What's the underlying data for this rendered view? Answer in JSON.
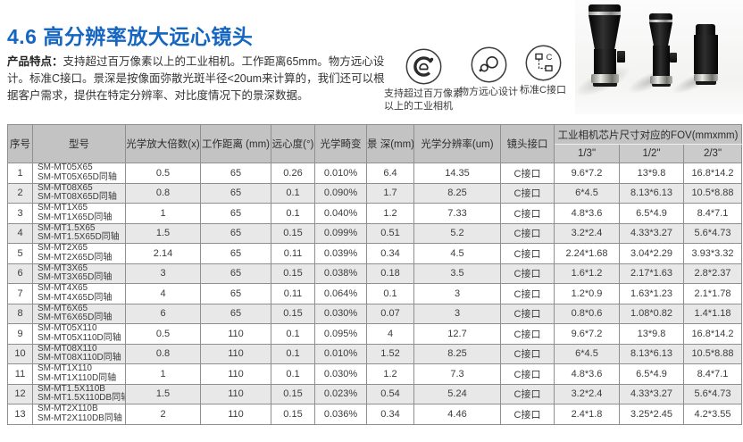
{
  "colors": {
    "accent_blue": "#1566C0",
    "table_header_bg": "#c3c3c3",
    "table_subheader_bg": "#cbcbcb",
    "row_alt_bg": "#e8e8e8",
    "border": "#8f8f8f"
  },
  "page": {
    "title": "4.6 高分辨率放大远心镜头",
    "intro_label": "产品特点：",
    "intro_text": "支持超过百万像素以上的工业相机。工作距离65mm。物方远心设计。标准C接口。景深是按像面弥散光斑半径<20um来计算的，我们还可以根据客户需求，提供在特定分辨率、对比度情况下的景深数据。"
  },
  "features": [
    {
      "icon": "camera-sensor-icon",
      "label": "支持超过百万像素\n以上的工业相机"
    },
    {
      "icon": "telecentric-design-icon",
      "label": "物方远心设计"
    },
    {
      "icon": "c-mount-icon",
      "label": "标准C接口"
    }
  ],
  "photo": {
    "alt": "三款远心镜头产品图"
  },
  "table": {
    "headers": {
      "index": "序号",
      "model": "型号",
      "magnification": "光学放大倍数(x)",
      "working_distance": "工作距离 (mm)",
      "telecentricity": "远心度(°)",
      "distortion": "光学畸变",
      "dof": "景 深(mm)",
      "resolution": "光学分辨率(um)",
      "mount": "镜头接口",
      "fov_group": "工业相机芯片尺寸对应的FOV(mmxmm)",
      "fov_13": "1/3\"",
      "fov_12": "1/2\"",
      "fov_23": "2/3\""
    },
    "rows": [
      {
        "no": "1",
        "models": [
          "SM-MT05X65",
          "SM-MT05X65D同轴"
        ],
        "cells": [
          "0.5",
          "65",
          "0.26",
          "0.010%",
          "6.4",
          "14.35",
          "C接口",
          "9.6*7.2",
          "13*9.8",
          "16.8*14.2"
        ]
      },
      {
        "no": "2",
        "models": [
          "SM-MT08X65",
          "SM-MT08X65D同轴"
        ],
        "cells": [
          "0.8",
          "65",
          "0.1",
          "0.090%",
          "1.7",
          "8.25",
          "C接口",
          "6*4.5",
          "8.13*6.13",
          "10.5*8.88"
        ]
      },
      {
        "no": "3",
        "models": [
          "SM-MT1X65",
          "SM-MT1X65D同轴"
        ],
        "cells": [
          "1",
          "65",
          "0.1",
          "0.040%",
          "1.2",
          "7.33",
          "C接口",
          "4.8*3.6",
          "6.5*4.9",
          "8.4*7.1"
        ]
      },
      {
        "no": "4",
        "models": [
          "SM-MT1.5X65",
          "SM-MT1.5X65D同轴"
        ],
        "cells": [
          "1.5",
          "65",
          "0.15",
          "0.099%",
          "0.51",
          "5.2",
          "C接口",
          "3.2*2.4",
          "4.33*3.27",
          "5.6*4.73"
        ]
      },
      {
        "no": "5",
        "models": [
          "SM-MT2X65",
          "SM-MT2X65D同轴"
        ],
        "cells": [
          "2.14",
          "65",
          "0.11",
          "0.039%",
          "0.34",
          "4.5",
          "C接口",
          "2.24*1.68",
          "3.04*2.29",
          "3.93*3.32"
        ]
      },
      {
        "no": "6",
        "models": [
          "SM-MT3X65",
          "SM-MT3X65D同轴"
        ],
        "cells": [
          "3",
          "65",
          "0.15",
          "0.038%",
          "0.18",
          "3.5",
          "C接口",
          "1.6*1.2",
          "2.17*1.63",
          "2.8*2.37"
        ]
      },
      {
        "no": "7",
        "models": [
          "SM-MT4X65",
          "SM-MT4X65D同轴"
        ],
        "cells": [
          "4",
          "65",
          "0.11",
          "0.064%",
          "0.1",
          "3",
          "C接口",
          "1.2*0.9",
          "1.63*1.23",
          "2.1*1.78"
        ]
      },
      {
        "no": "8",
        "models": [
          "SM-MT6X65",
          "SM-MT6X65D同轴"
        ],
        "cells": [
          "6",
          "65",
          "0.15",
          "0.030%",
          "0.07",
          "3",
          "C接口",
          "0.8*0.6",
          "1.08*0.82",
          "1.4*1.18"
        ]
      },
      {
        "no": "9",
        "models": [
          "SM-MT05X110",
          "SM-MT05X110D同轴"
        ],
        "cells": [
          "0.5",
          "110",
          "0.1",
          "0.095%",
          "4",
          "12.7",
          "C接口",
          "9.6*7.2",
          "13*9.8",
          "16.8*14.2"
        ]
      },
      {
        "no": "10",
        "models": [
          "SM-MT08X110",
          "SM-MT08X110D同轴"
        ],
        "cells": [
          "0.8",
          "110",
          "0.1",
          "0.010%",
          "1.52",
          "8.25",
          "C接口",
          "6*4.5",
          "8.13*6.13",
          "10.5*8.88"
        ]
      },
      {
        "no": "11",
        "models": [
          "SM-MT1X110",
          "SM-MT1X110D同轴"
        ],
        "cells": [
          "1",
          "110",
          "0.1",
          "0.030%",
          "1.2",
          "7.3",
          "C接口",
          "4.8*3.6",
          "6.5*4.9",
          "8.4*7.1"
        ]
      },
      {
        "no": "12",
        "models": [
          "SM-MT1.5X110B",
          "SM-MT1.5X110DB同轴"
        ],
        "cells": [
          "1.5",
          "110",
          "0.15",
          "0.023%",
          "0.54",
          "5.24",
          "C接口",
          "3.2*2.4",
          "4.33*3.27",
          "5.6*4.73"
        ]
      },
      {
        "no": "13",
        "models": [
          "SM-MT2X110B",
          "SM-MT2X110DB同轴"
        ],
        "cells": [
          "2",
          "110",
          "0.15",
          "0.036%",
          "0.34",
          "4.46",
          "C接口",
          "2.4*1.8",
          "3.25*2.45",
          "4.2*3.55"
        ]
      }
    ]
  }
}
